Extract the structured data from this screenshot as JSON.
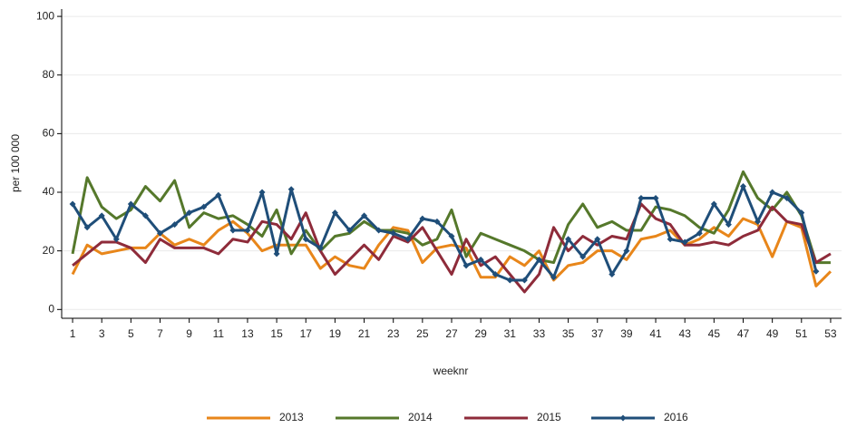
{
  "chart_data": {
    "type": "line",
    "x_label": "weeknr",
    "y_label": "per 100 000",
    "x": [
      1,
      2,
      3,
      4,
      5,
      6,
      7,
      8,
      9,
      10,
      11,
      12,
      13,
      14,
      15,
      16,
      17,
      18,
      19,
      20,
      21,
      22,
      23,
      24,
      25,
      26,
      27,
      28,
      29,
      30,
      31,
      32,
      33,
      34,
      35,
      36,
      37,
      38,
      39,
      40,
      41,
      42,
      43,
      44,
      45,
      46,
      47,
      48,
      49,
      50,
      51,
      52,
      53
    ],
    "series": [
      {
        "name": "2013",
        "color": "#e8861a",
        "values": [
          12,
          22,
          19,
          20,
          21,
          21,
          26,
          22,
          24,
          22,
          27,
          30,
          26,
          20,
          22,
          22,
          22,
          14,
          18,
          15,
          14,
          22,
          28,
          27,
          16,
          21,
          22,
          21,
          11,
          11,
          18,
          15,
          20,
          10,
          15,
          16,
          20,
          20,
          17,
          24,
          25,
          27,
          22,
          24,
          28,
          25,
          31,
          29,
          18,
          30,
          28,
          8,
          13
        ]
      },
      {
        "name": "2014",
        "color": "#55782b",
        "values": [
          19,
          45,
          35,
          31,
          34,
          42,
          37,
          44,
          28,
          33,
          31,
          32,
          29,
          25,
          34,
          19,
          27,
          20,
          25,
          26,
          30,
          27,
          27,
          26,
          22,
          24,
          34,
          18,
          26,
          24,
          22,
          20,
          17,
          16,
          29,
          36,
          28,
          30,
          27,
          27,
          35,
          34,
          32,
          28,
          26,
          34,
          47,
          38,
          34,
          40,
          32,
          16,
          16
        ]
      },
      {
        "name": "2015",
        "color": "#8e2b3a",
        "values": [
          15,
          19,
          23,
          23,
          21,
          16,
          24,
          21,
          21,
          21,
          19,
          24,
          23,
          30,
          29,
          24,
          33,
          20,
          12,
          17,
          22,
          17,
          25,
          23,
          28,
          20,
          12,
          24,
          15,
          18,
          12,
          6,
          12,
          28,
          20,
          25,
          22,
          25,
          24,
          36,
          31,
          29,
          22,
          22,
          23,
          22,
          25,
          27,
          35,
          30,
          29,
          16,
          19
        ]
      },
      {
        "name": "2016",
        "color": "#1f4e79",
        "marker": "diamond",
        "values": [
          36,
          28,
          32,
          24,
          36,
          32,
          26,
          29,
          33,
          35,
          39,
          27,
          27,
          40,
          19,
          41,
          24,
          21,
          33,
          27,
          32,
          27,
          26,
          24,
          31,
          30,
          25,
          15,
          17,
          12,
          10,
          10,
          17,
          11,
          24,
          18,
          24,
          12,
          20,
          38,
          38,
          24,
          23,
          26,
          36,
          29,
          42,
          30,
          40,
          38,
          33,
          13,
          null
        ]
      }
    ],
    "xlim": [
      0.25,
      53.75
    ],
    "xticks": [
      1,
      3,
      5,
      7,
      9,
      11,
      13,
      15,
      17,
      19,
      21,
      23,
      25,
      27,
      29,
      31,
      33,
      35,
      37,
      39,
      41,
      43,
      45,
      47,
      49,
      51,
      53
    ],
    "ylim": [
      -3,
      102.5
    ],
    "yticks": [
      0,
      20,
      40,
      60,
      80,
      100
    ],
    "grid": true,
    "legend": "bottom"
  }
}
